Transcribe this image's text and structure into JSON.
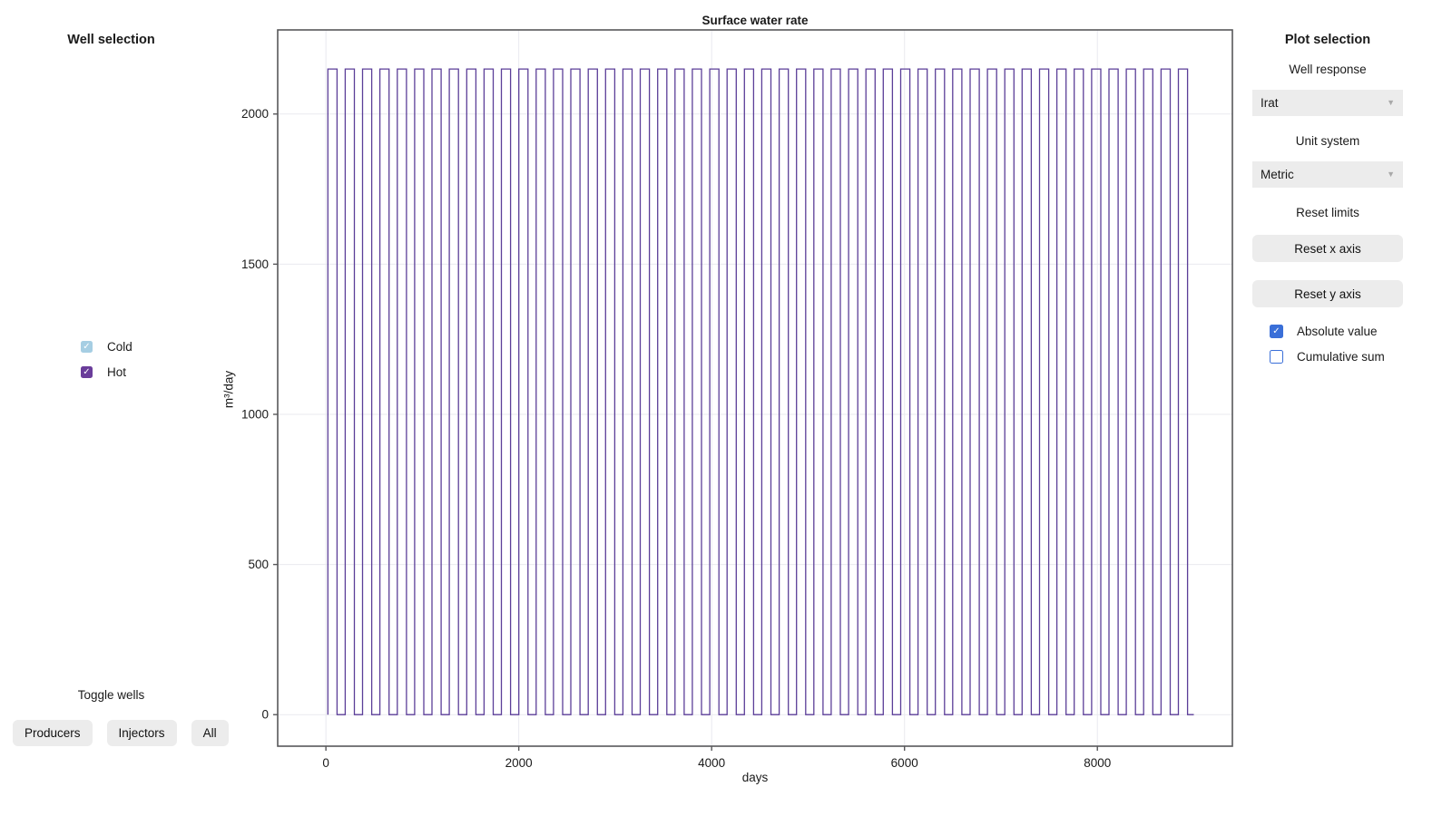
{
  "left_panel": {
    "title": "Well selection",
    "wells": [
      {
        "label": "Cold",
        "checked": true,
        "color": "#a6cee3"
      },
      {
        "label": "Hot",
        "checked": true,
        "color": "#6a3d9a"
      }
    ],
    "toggle_title": "Toggle wells",
    "buttons": [
      {
        "label": "Producers"
      },
      {
        "label": "Injectors"
      },
      {
        "label": "All"
      }
    ]
  },
  "right_panel": {
    "title": "Plot selection",
    "well_response_label": "Well response",
    "well_response_value": "Irat",
    "unit_system_label": "Unit system",
    "unit_system_value": "Metric",
    "reset_limits_label": "Reset limits",
    "reset_x_label": "Reset x axis",
    "reset_y_label": "Reset y axis",
    "checkboxes": [
      {
        "label": "Absolute value",
        "checked": true
      },
      {
        "label": "Cumulative sum",
        "checked": false
      }
    ]
  },
  "icons": {
    "check_icon": "✓",
    "dropdown_arrow_icon": "▼"
  },
  "colors": {
    "accent": "#3a6fd8",
    "control_background": "#ececec",
    "cold_well": "#a6cee3",
    "hot_well": "#6a3d9a"
  },
  "chart_data": {
    "type": "line",
    "title": "Surface water rate",
    "xlabel": "days",
    "ylabel": "m³/day",
    "xlim": [
      -500,
      9400
    ],
    "ylim": [
      -105,
      2280
    ],
    "x_ticks": [
      0,
      2000,
      4000,
      6000,
      8000
    ],
    "y_ticks": [
      0,
      500,
      1000,
      1500,
      2000
    ],
    "grid": true,
    "grid_color": "#e9e9ef",
    "axis_color": "#58585a",
    "tick_label_color": "#1a1a1a",
    "background": "#ffffff",
    "legend": "none",
    "series": [
      {
        "name": "Hot",
        "color": "#5b3e98",
        "waveform": "square",
        "start_day": 20,
        "end_day": 9000,
        "period_days": 180,
        "high_days": 95,
        "high_value": 2150,
        "low_value": 0,
        "cycles": 50
      }
    ]
  }
}
